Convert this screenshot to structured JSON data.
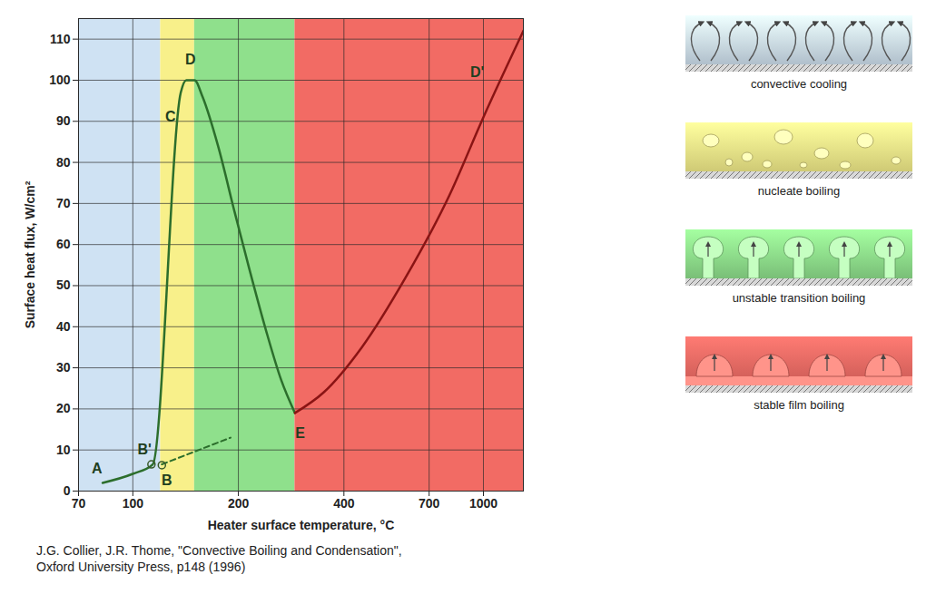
{
  "chart_data": {
    "type": "line",
    "xlabel": "Heater surface temperature, °C",
    "ylabel": "Surface heat flux, W/cm²",
    "log": "x",
    "grid": true,
    "xlim": [
      70,
      1300
    ],
    "xticks": [
      70,
      100,
      200,
      400,
      700,
      1000
    ],
    "ylim": [
      0,
      115
    ],
    "yticks": [
      0,
      10,
      20,
      30,
      40,
      50,
      60,
      70,
      80,
      90,
      100,
      110
    ],
    "series": [
      {
        "color": "#2c6e2c",
        "line_style": "solid",
        "x": [
          82,
          100,
          114,
          137,
          142,
          150,
          158,
          175,
          195,
          215,
          240,
          265,
          290
        ],
        "values": [
          2,
          4.2,
          6.5,
          97,
          100,
          100,
          96,
          84,
          68,
          54,
          39,
          27,
          19
        ]
      },
      {
        "color": "#8a1414",
        "line_style": "solid",
        "x": [
          290,
          350,
          450,
          600,
          800,
          1000,
          1300
        ],
        "values": [
          19,
          24,
          35,
          52,
          72,
          91,
          112
        ]
      },
      {
        "color": "#2c6e2c",
        "line_style": "dashed",
        "x": [
          121,
          190
        ],
        "values": [
          6.5,
          13
        ]
      },
      {
        "type": "scatter",
        "marker": "circle",
        "color": "#3a5a2a",
        "x": [
          113,
          121
        ],
        "values": [
          6.5,
          6.3
        ]
      }
    ],
    "annotations": [
      {
        "text": "A",
        "x": 79,
        "y": 5.5
      },
      {
        "text": "B'",
        "x": 108,
        "y": 10
      },
      {
        "text": "B",
        "x": 125,
        "y": 2.5
      },
      {
        "text": "C",
        "x": 128,
        "y": 91
      },
      {
        "text": "D",
        "x": 146,
        "y": 105
      },
      {
        "text": "E",
        "x": 300,
        "y": 14
      },
      {
        "text": "D'",
        "x": 960,
        "y": 102
      }
    ],
    "regimes": [
      {
        "label": "convective cooling",
        "color": "#cfe2f3",
        "x": [
          70,
          120
        ]
      },
      {
        "label": "nucleate boiling",
        "color": "#f8f08a",
        "x": [
          120,
          150
        ]
      },
      {
        "label": "unstable transition boiling",
        "color": "#8fe08c",
        "x": [
          150,
          290
        ]
      },
      {
        "label": "stable film boiling",
        "color": "#f26b64",
        "x": [
          290,
          1300
        ]
      }
    ],
    "source": [
      "J.G. Collier, J.R. Thome, \"Convective Boiling and Condensation\",",
      "Oxford University Press, p148  (1996)"
    ]
  }
}
